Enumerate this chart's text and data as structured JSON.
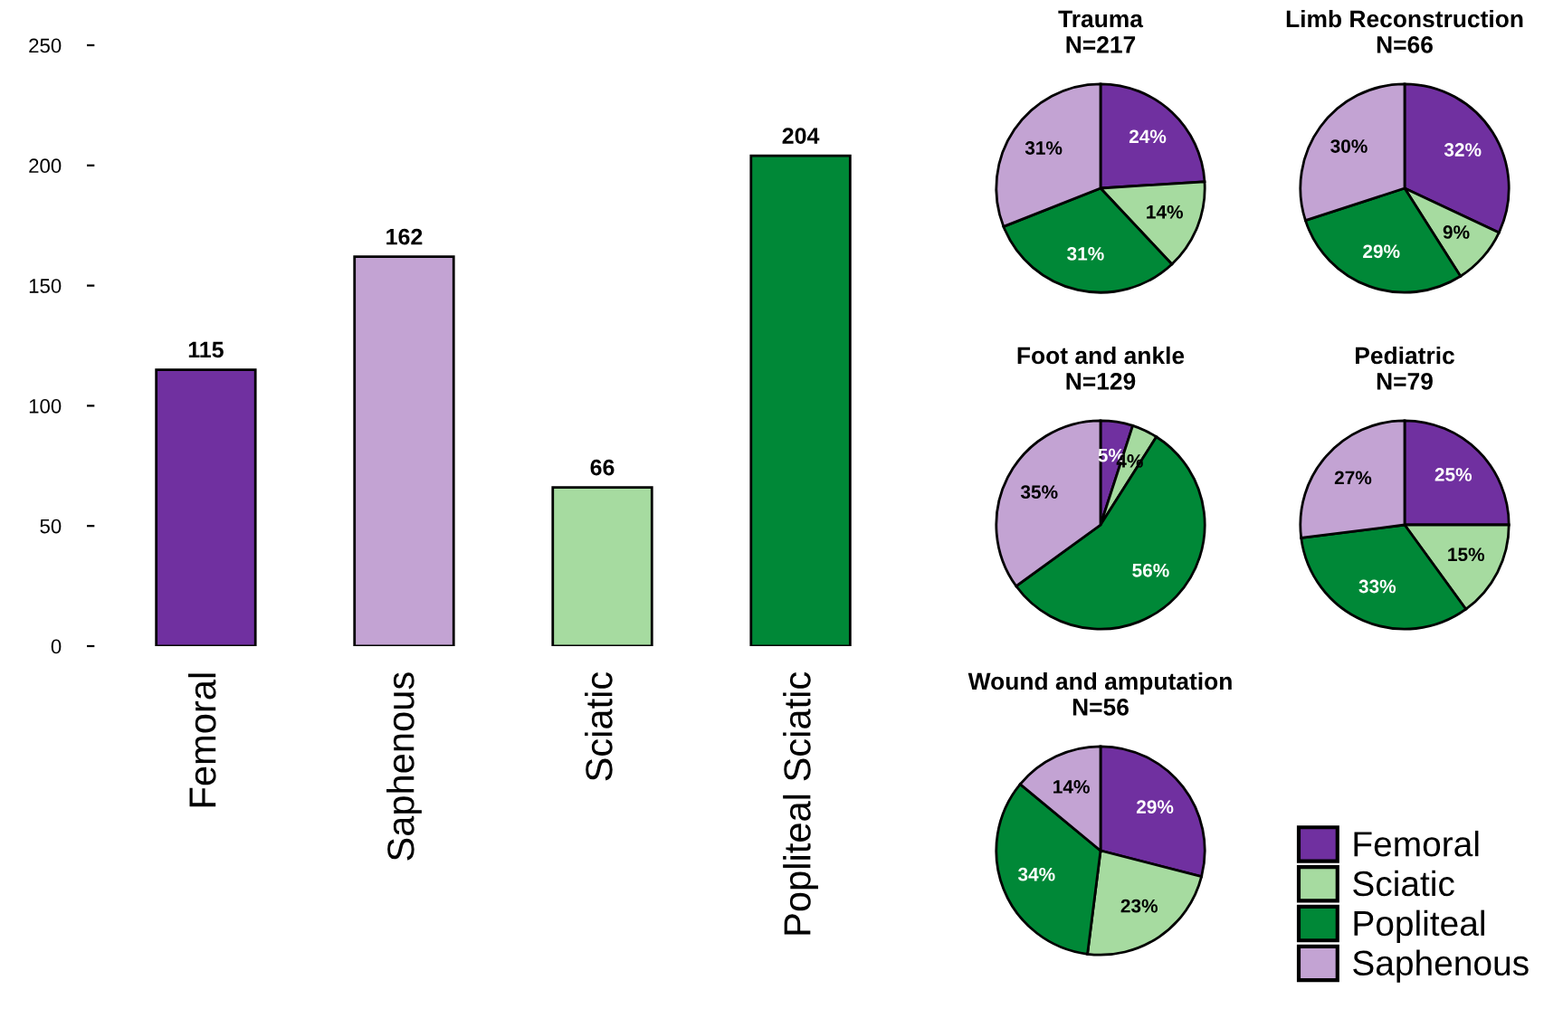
{
  "chart_data": [
    {
      "type": "bar",
      "categories": [
        "Femoral",
        "Saphenous",
        "Sciatic",
        "Popliteal Sciatic"
      ],
      "values": [
        115,
        162,
        66,
        204
      ],
      "colors": [
        "#7030a0",
        "#c3a3d3",
        "#a6dba0",
        "#008837"
      ],
      "ylim": [
        0,
        250
      ],
      "yticks": [
        0,
        50,
        100,
        150,
        200,
        250
      ],
      "data_labels": true,
      "grid": false
    },
    {
      "type": "pie",
      "title": "Trauma\nN=217",
      "categories": [
        "Femoral",
        "Sciatic",
        "Popliteal",
        "Saphenous"
      ],
      "values": [
        24,
        14,
        31,
        31
      ],
      "value_labels": [
        "24%",
        "14%",
        "31%",
        "31%"
      ],
      "colors": [
        "#7030a0",
        "#a6dba0",
        "#008837",
        "#c3a3d3"
      ],
      "legend": "bottom right"
    },
    {
      "type": "pie",
      "title": "Limb Reconstruction\nN=66",
      "categories": [
        null,
        null,
        null,
        null
      ],
      "values": [
        32,
        9,
        29,
        30
      ],
      "value_labels": [
        "32%",
        "9%",
        "29%",
        "30%"
      ],
      "colors": [
        "#7030a0",
        "#a6dba0",
        "#008837",
        "#c3a3d3"
      ]
    },
    {
      "type": "pie",
      "title": "Foot and ankle\nN=129",
      "categories": [
        null,
        null,
        null,
        null
      ],
      "values": [
        5,
        4,
        56,
        35
      ],
      "value_labels": [
        "5%",
        "4%",
        "56%",
        "35%"
      ],
      "colors": [
        "#7030a0",
        "#a6dba0",
        "#008837",
        "#c3a3d3"
      ]
    },
    {
      "type": "pie",
      "title": "Pediatric\nN=79",
      "categories": [
        null,
        null,
        null,
        null
      ],
      "values": [
        25,
        15,
        33,
        27
      ],
      "value_labels": [
        "25%",
        "15%",
        "33%",
        "27%"
      ],
      "colors": [
        "#7030a0",
        "#a6dba0",
        "#008837",
        "#c3a3d3"
      ]
    },
    {
      "type": "pie",
      "title": "Wound and amputation\nN=56",
      "categories": [
        null,
        null,
        null,
        null
      ],
      "values": [
        29,
        23,
        34,
        14
      ],
      "value_labels": [
        "29%",
        "23%",
        "34%",
        "14%"
      ],
      "colors": [
        "#7030a0",
        "#a6dba0",
        "#008837",
        "#c3a3d3"
      ]
    }
  ]
}
